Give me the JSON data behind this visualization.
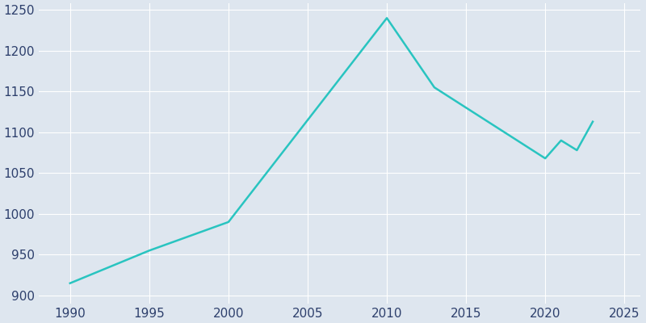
{
  "years": [
    1990,
    1995,
    2000,
    2010,
    2013,
    2020,
    2021,
    2022,
    2023
  ],
  "population": [
    915,
    955,
    990,
    1240,
    1155,
    1068,
    1090,
    1078,
    1113
  ],
  "line_color": "#29C4C0",
  "bg_color": "#DEE6EF",
  "plot_bg_color": "#DEE6EF",
  "grid_color": "#FFFFFF",
  "tick_color": "#2D3F6C",
  "xlim": [
    1988,
    2026
  ],
  "ylim": [
    890,
    1258
  ],
  "yticks": [
    900,
    950,
    1000,
    1050,
    1100,
    1150,
    1200,
    1250
  ],
  "xticks": [
    1990,
    1995,
    2000,
    2005,
    2010,
    2015,
    2020,
    2025
  ],
  "linewidth": 1.8,
  "tick_fontsize": 11
}
